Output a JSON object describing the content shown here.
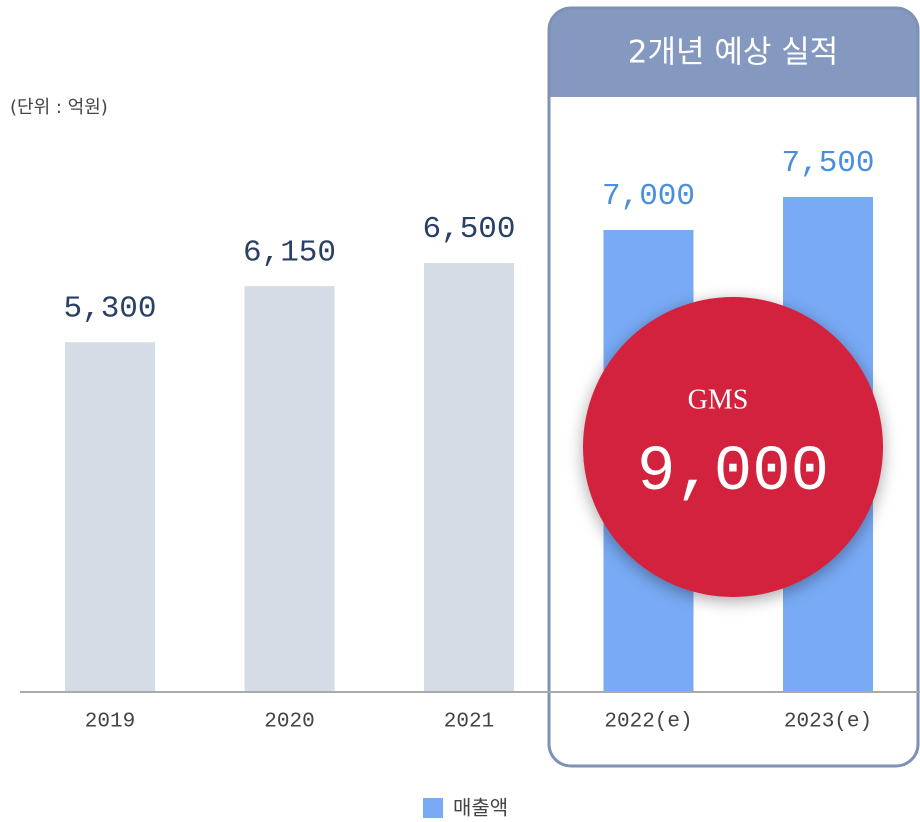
{
  "chart_data": {
    "type": "bar",
    "unit_label": "(단위 : 억원)",
    "categories": [
      "2019",
      "2020",
      "2021",
      "2022(e)",
      "2023(e)"
    ],
    "values": [
      5300,
      6150,
      6500,
      7000,
      7500
    ],
    "value_labels": [
      "5,300",
      "6,150",
      "6,500",
      "7,000",
      "7,500"
    ],
    "colors": [
      "#d5dce6",
      "#d5dce6",
      "#d5dce6",
      "#78aaf5",
      "#78aaf5"
    ],
    "label_colors": [
      "#2a3f66",
      "#2a3f66",
      "#2a3f66",
      "#4a8ee0",
      "#4a8ee0"
    ],
    "legend": {
      "name": "매출액",
      "color": "#78aaf5"
    },
    "highlight_title": "2개년 예상 실적",
    "annotation": {
      "title": "GMS",
      "value": 9000,
      "label": "9,000",
      "color": "#d2203c"
    }
  }
}
